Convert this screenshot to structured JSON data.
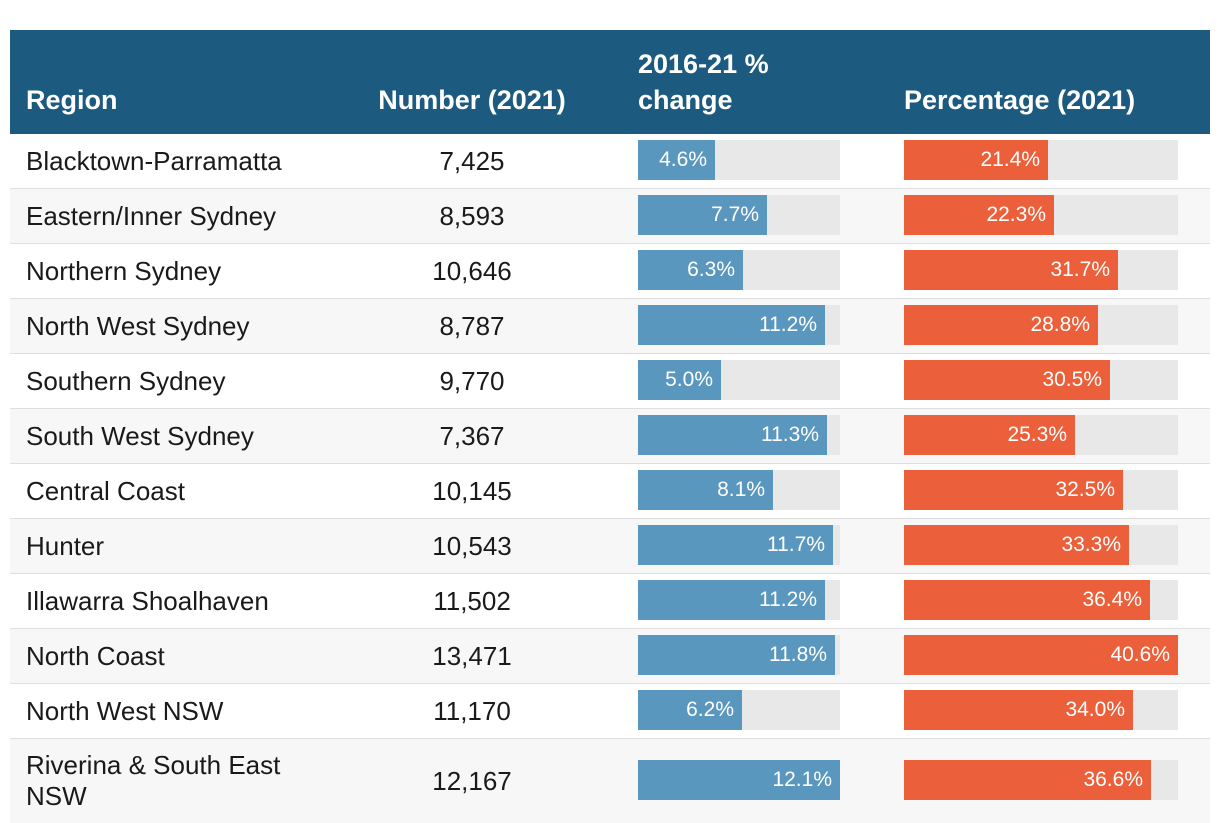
{
  "chart_data": {
    "type": "table",
    "columns": [
      "Region",
      "Number (2021)",
      "2016-21 % change",
      "Percentage (2021)"
    ],
    "change_max": 12.1,
    "pct_max": 40.6,
    "colors": {
      "header": "#1d5a80",
      "change_bar": "#5a97be",
      "pct_bar": "#eb603b",
      "track": "#e8e8e8"
    },
    "rows": [
      {
        "region": "Blacktown-Parramatta",
        "number": "7,425",
        "change": 4.6,
        "change_label": "4.6%",
        "pct": 21.4,
        "pct_label": "21.4%"
      },
      {
        "region": "Eastern/Inner Sydney",
        "number": "8,593",
        "change": 7.7,
        "change_label": "7.7%",
        "pct": 22.3,
        "pct_label": "22.3%"
      },
      {
        "region": "Northern Sydney",
        "number": "10,646",
        "change": 6.3,
        "change_label": "6.3%",
        "pct": 31.7,
        "pct_label": "31.7%"
      },
      {
        "region": "North West Sydney",
        "number": "8,787",
        "change": 11.2,
        "change_label": "11.2%",
        "pct": 28.8,
        "pct_label": "28.8%"
      },
      {
        "region": "Southern Sydney",
        "number": "9,770",
        "change": 5.0,
        "change_label": "5.0%",
        "pct": 30.5,
        "pct_label": "30.5%"
      },
      {
        "region": "South West Sydney",
        "number": "7,367",
        "change": 11.3,
        "change_label": "11.3%",
        "pct": 25.3,
        "pct_label": "25.3%"
      },
      {
        "region": "Central Coast",
        "number": "10,145",
        "change": 8.1,
        "change_label": "8.1%",
        "pct": 32.5,
        "pct_label": "32.5%"
      },
      {
        "region": "Hunter",
        "number": "10,543",
        "change": 11.7,
        "change_label": "11.7%",
        "pct": 33.3,
        "pct_label": "33.3%"
      },
      {
        "region": "Illawarra Shoalhaven",
        "number": "11,502",
        "change": 11.2,
        "change_label": "11.2%",
        "pct": 36.4,
        "pct_label": "36.4%"
      },
      {
        "region": "North Coast",
        "number": "13,471",
        "change": 11.8,
        "change_label": "11.8%",
        "pct": 40.6,
        "pct_label": "40.6%"
      },
      {
        "region": "North West NSW",
        "number": "11,170",
        "change": 6.2,
        "change_label": "6.2%",
        "pct": 34.0,
        "pct_label": "34.0%"
      },
      {
        "region": "Riverina & South East NSW",
        "number": "12,167",
        "change": 12.1,
        "change_label": "12.1%",
        "pct": 36.6,
        "pct_label": "36.6%"
      }
    ]
  }
}
